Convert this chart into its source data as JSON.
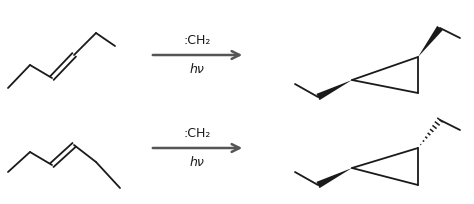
{
  "bg_color": "#ffffff",
  "line_color": "#1a1a1a",
  "arrow_color": "#555555",
  "text_color": "#1a1a1a",
  "reaction1_label": ":CH₂",
  "reaction1_label2": "hν",
  "reaction2_label": ":CH₂",
  "reaction2_label2": "hν",
  "figsize": [
    4.74,
    2.04
  ],
  "dpi": 100
}
